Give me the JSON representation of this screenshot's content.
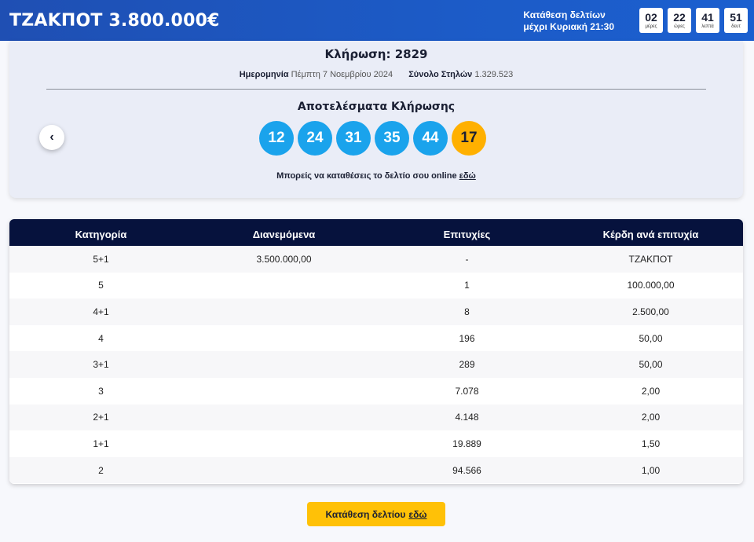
{
  "header": {
    "jackpot_title": "ΤΖΑΚΠΟΤ 3.800.000€",
    "deadline_line1": "Κατάθεση δελτίων",
    "deadline_line2": "μέχρι Κυριακή 21:30",
    "countdown": [
      {
        "value": "02",
        "unit": "μέρες"
      },
      {
        "value": "22",
        "unit": "ώρες"
      },
      {
        "value": "41",
        "unit": "λεπτά"
      },
      {
        "value": "51",
        "unit": "δευτ"
      }
    ]
  },
  "draw": {
    "title": "Κλήρωση: 2829",
    "date_label": "Ημερομηνία",
    "date_value": "Πέμπτη 7 Νοεμβρίου 2024",
    "columns_label": "Σύνολο Στηλών",
    "columns_value": "1.329.523",
    "results_heading": "Αποτελέσματα Κλήρωσης",
    "numbers": [
      "12",
      "24",
      "31",
      "35",
      "44"
    ],
    "bonus_number": "17",
    "prev_icon": "‹",
    "online_note_text": "Μπορείς να καταθέσεις το δελτίο σου online",
    "online_note_link": "εδώ"
  },
  "prize_table": {
    "headers": [
      "Κατηγορία",
      "Διανεμόμενα",
      "Επιτυχίες",
      "Κέρδη ανά επιτυχία"
    ],
    "rows": [
      [
        "5+1",
        "3.500.000,00",
        "-",
        "ΤΖΑΚΠΟΤ"
      ],
      [
        "5",
        "",
        "1",
        "100.000,00"
      ],
      [
        "4+1",
        "",
        "8",
        "2.500,00"
      ],
      [
        "4",
        "",
        "196",
        "50,00"
      ],
      [
        "3+1",
        "",
        "289",
        "50,00"
      ],
      [
        "3",
        "",
        "7.078",
        "2,00"
      ],
      [
        "2+1",
        "",
        "4.148",
        "2,00"
      ],
      [
        "1+1",
        "",
        "19.889",
        "1,50"
      ],
      [
        "2",
        "",
        "94.566",
        "1,00"
      ]
    ]
  },
  "submit": {
    "label": "Κατάθεση δελτίου",
    "link": "εδώ"
  },
  "colors": {
    "header_blue": "#1c5bc7",
    "ball_blue": "#1aa3ec",
    "bonus_orange": "#ffb000",
    "table_header": "#06123d",
    "button_yellow": "#ffc107"
  }
}
